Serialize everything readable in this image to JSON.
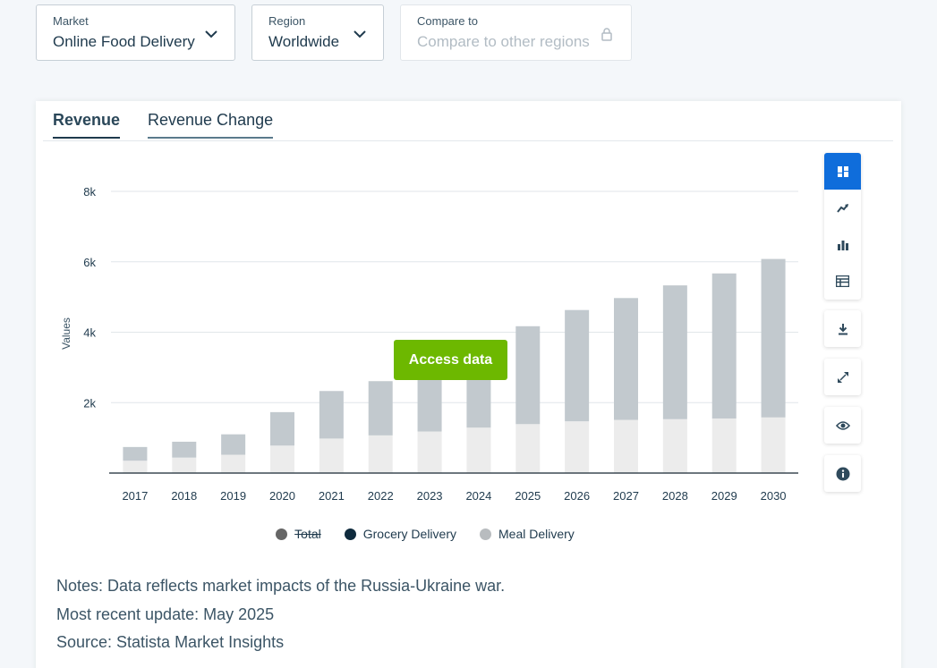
{
  "filters": {
    "market": {
      "label": "Market",
      "value": "Online Food Delivery"
    },
    "region": {
      "label": "Region",
      "value": "Worldwide"
    },
    "compare": {
      "label": "Compare to",
      "placeholder": "Compare to other regions"
    }
  },
  "tabs": [
    {
      "label": "Revenue"
    },
    {
      "label": "Revenue Change"
    }
  ],
  "access_button": "Access data",
  "legend": [
    {
      "label": "Total",
      "color": "#666666"
    },
    {
      "label": "Grocery Delivery",
      "color": "#0f2b3d"
    },
    {
      "label": "Meal Delivery",
      "color": "#b8bcbf"
    }
  ],
  "notes": [
    "Notes: Data reflects market impacts of the Russia-Ukraine war.",
    "Most recent update: May 2025",
    "Source: Statista Market Insights"
  ],
  "sidebar_icons": [
    "dashboard-icon",
    "trend-line-icon",
    "bar-chart-icon",
    "table-icon",
    "download-icon",
    "expand-icon",
    "eye-icon",
    "info-icon"
  ],
  "chart_data": {
    "type": "bar",
    "stacked": true,
    "ylabel": "Values",
    "ylim": [
      0,
      8000
    ],
    "yticks": [
      {
        "value": 2000,
        "label": "2k"
      },
      {
        "value": 4000,
        "label": "4k"
      },
      {
        "value": 6000,
        "label": "6k"
      },
      {
        "value": 8000,
        "label": "8k"
      }
    ],
    "categories": [
      "2017",
      "2018",
      "2019",
      "2020",
      "2021",
      "2022",
      "2023",
      "2024",
      "2025",
      "2026",
      "2027",
      "2028",
      "2029",
      "2030"
    ],
    "series": [
      {
        "name": "Meal Delivery",
        "color": "#ececec",
        "values": [
          350,
          440,
          520,
          780,
          980,
          1070,
          1180,
          1290,
          1390,
          1470,
          1510,
          1530,
          1550,
          1580
        ]
      },
      {
        "name": "Grocery Delivery",
        "color": "#c2c9ce",
        "values": [
          390,
          450,
          580,
          950,
          1350,
          1540,
          1620,
          1640,
          2780,
          3160,
          3460,
          3800,
          4120,
          4500
        ]
      }
    ],
    "grid": true
  }
}
